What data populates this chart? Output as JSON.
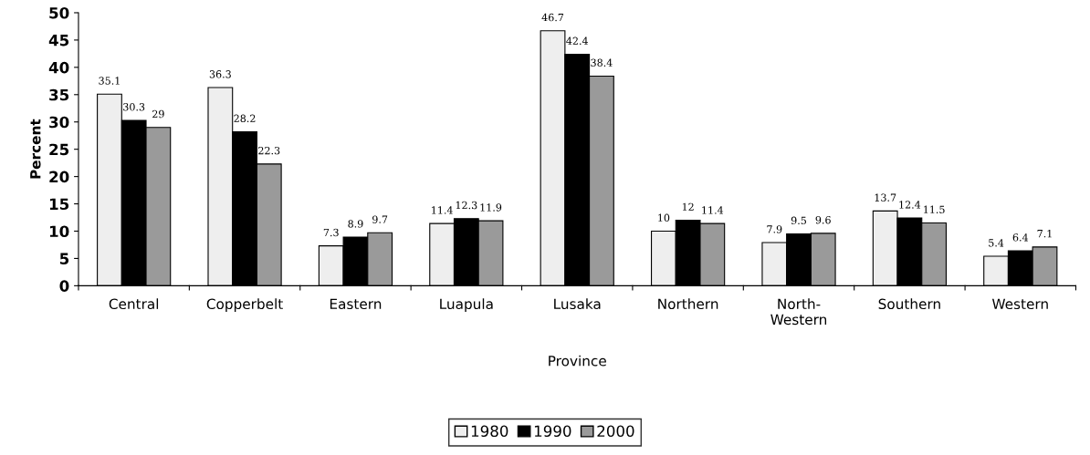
{
  "chart_data": {
    "type": "bar",
    "xlabel": "Province",
    "ylabel": "Percent",
    "categories": [
      "Central",
      "Copperbelt",
      "Eastern",
      "Luapula",
      "Lusaka",
      "Northern",
      "North-Western",
      "Southern",
      "Western"
    ],
    "series": [
      {
        "name": "1980",
        "color": "#eeeeee",
        "values": [
          35.1,
          36.3,
          7.3,
          11.4,
          46.7,
          10,
          7.9,
          13.7,
          5.4
        ]
      },
      {
        "name": "1990",
        "color": "#000000",
        "values": [
          30.3,
          28.2,
          8.9,
          12.3,
          42.4,
          12,
          9.5,
          12.4,
          6.4
        ]
      },
      {
        "name": "2000",
        "color": "#9a9a9a",
        "values": [
          29,
          22.3,
          9.7,
          11.9,
          38.4,
          11.4,
          9.6,
          11.5,
          7.1
        ]
      }
    ],
    "ylim": [
      0,
      50
    ],
    "yticks": [
      0,
      5,
      10,
      15,
      20,
      25,
      30,
      35,
      40,
      45,
      50
    ],
    "data_labels": true,
    "grid": false,
    "legend": "bottom"
  }
}
